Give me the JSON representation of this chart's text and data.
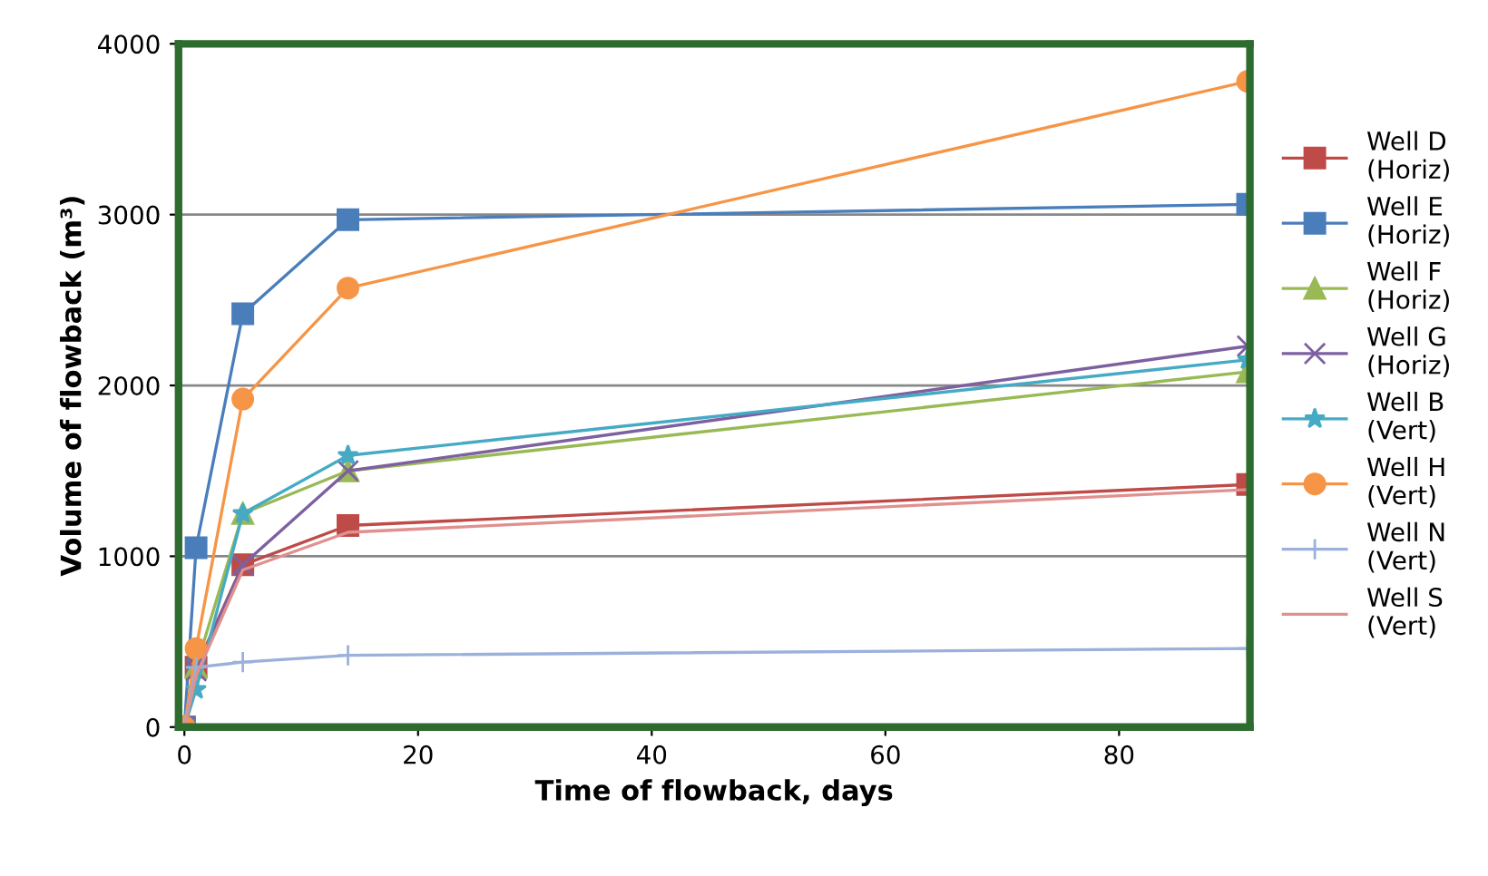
{
  "chart_data": {
    "type": "line",
    "xlabel": "Time of flowback, days",
    "ylabel": "Volume of flowback (m³)",
    "x": [
      0,
      1,
      5,
      14,
      91
    ],
    "xlim": [
      -0.5,
      91.2
    ],
    "xticks": [
      0,
      20,
      40,
      60,
      80
    ],
    "ylim": [
      0,
      4000
    ],
    "yticks": [
      0,
      1000,
      2000,
      3000,
      4000
    ],
    "grid": "y",
    "legend": "right",
    "series": [
      {
        "name": "Well D\n(Horiz)",
        "color": "#be4b48",
        "marker": "square",
        "values": [
          0,
          350,
          950,
          1180,
          1420
        ]
      },
      {
        "name": "Well E\n(Horiz)",
        "color": "#4a7ebb",
        "marker": "square",
        "values": [
          0,
          1050,
          2420,
          2970,
          3060
        ]
      },
      {
        "name": "Well F\n(Horiz)",
        "color": "#98b954",
        "marker": "triangle",
        "values": [
          0,
          350,
          1250,
          1500,
          2080
        ]
      },
      {
        "name": "Well G\n(Horiz)",
        "color": "#7d60a0",
        "marker": "cross",
        "values": [
          0,
          330,
          950,
          1500,
          2230
        ]
      },
      {
        "name": "Well B\n(Vert)",
        "color": "#46aac5",
        "marker": "star",
        "values": [
          0,
          220,
          1250,
          1590,
          2150
        ]
      },
      {
        "name": "Well H\n(Vert)",
        "color": "#f69546",
        "marker": "circle",
        "values": [
          0,
          460,
          1920,
          2570,
          3780
        ]
      },
      {
        "name": "Well N\n(Vert)",
        "color": "#9bb0da",
        "marker": "plus",
        "values": [
          0,
          350,
          380,
          420,
          460
        ]
      },
      {
        "name": "Well S\n(Vert)",
        "color": "#e0908e",
        "marker": "none",
        "values": [
          0,
          300,
          920,
          1140,
          1390
        ]
      }
    ]
  }
}
